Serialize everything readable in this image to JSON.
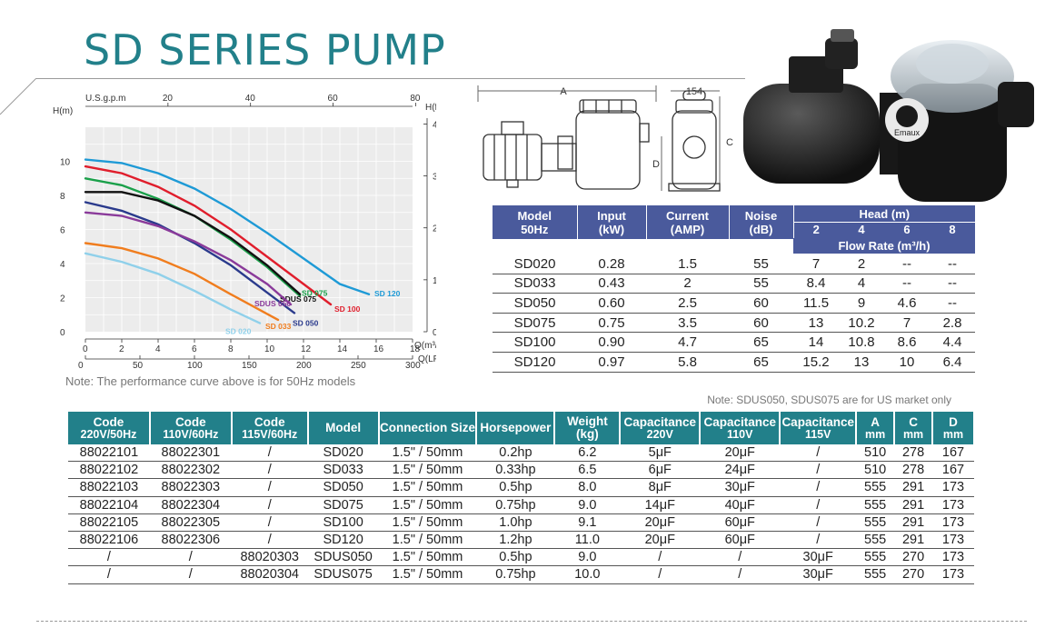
{
  "header": {
    "title": "SD SERIES PUMP"
  },
  "chart_data": {
    "type": "line",
    "title": "",
    "xlabel": "Q(m³/h)",
    "ylabel": "H(m)",
    "x_ticks": [
      "0",
      "2",
      "4",
      "6",
      "8",
      "10",
      "12",
      "14",
      "16",
      "18"
    ],
    "y_ticks": [
      "0",
      "2",
      "4",
      "6",
      "8",
      "10"
    ],
    "x_unit_label": "Q(m³/h)",
    "y_unit_label": "H(m)",
    "top_axis": {
      "label": "U.S.g.p.m",
      "ticks": [
        "20",
        "40",
        "60",
        "80"
      ]
    },
    "bottom_axis2": {
      "label": "Q(LPM)",
      "ticks": [
        "0",
        "50",
        "100",
        "150",
        "200",
        "250",
        "300"
      ]
    },
    "right_axis": {
      "label": "H(ft)",
      "ticks": [
        "0",
        "10",
        "20",
        "30",
        "40"
      ]
    },
    "xlim": [
      0,
      18
    ],
    "ylim": [
      0,
      12
    ],
    "series": [
      {
        "name": "SD 120",
        "color": "#1e9ad6",
        "x": [
          0,
          2,
          4,
          6,
          8,
          10,
          12,
          14,
          15.6
        ],
        "y": [
          10.1,
          9.9,
          9.3,
          8.4,
          7.2,
          5.8,
          4.3,
          2.8,
          2.2
        ]
      },
      {
        "name": "SD 100",
        "color": "#e01e2c",
        "x": [
          0,
          2,
          4,
          6,
          8,
          10,
          12,
          13.5
        ],
        "y": [
          9.7,
          9.3,
          8.5,
          7.4,
          6.0,
          4.4,
          2.8,
          1.6
        ]
      },
      {
        "name": "SD 075",
        "color": "#1aa04a",
        "x": [
          0,
          2,
          4,
          6,
          8,
          10,
          11.8
        ],
        "y": [
          9.0,
          8.6,
          7.8,
          6.8,
          5.4,
          3.8,
          2.1
        ]
      },
      {
        "name": "SDUS 075",
        "color": "#111111",
        "x": [
          0,
          2,
          4,
          6,
          8,
          10,
          11.8
        ],
        "y": [
          8.2,
          8.2,
          7.7,
          6.8,
          5.5,
          3.9,
          2.2
        ]
      },
      {
        "name": "SD 050",
        "color": "#2a3a8c",
        "x": [
          0,
          2,
          4,
          6,
          8,
          10,
          11.5
        ],
        "y": [
          7.6,
          7.1,
          6.3,
          5.2,
          3.9,
          2.3,
          1.1
        ]
      },
      {
        "name": "SDUS 050",
        "color": "#8a3a9a",
        "x": [
          0,
          2,
          4,
          6,
          8,
          10,
          11.3
        ],
        "y": [
          7.0,
          6.8,
          6.2,
          5.3,
          4.2,
          2.8,
          1.6
        ]
      },
      {
        "name": "SD 033",
        "color": "#f07d1e",
        "x": [
          0,
          2,
          4,
          6,
          8,
          10.6
        ],
        "y": [
          5.2,
          4.9,
          4.3,
          3.4,
          2.2,
          0.7
        ]
      },
      {
        "name": "SD 020",
        "color": "#8fd0ea",
        "x": [
          0,
          2,
          4,
          6,
          8,
          9.6
        ],
        "y": [
          4.6,
          4.1,
          3.4,
          2.4,
          1.3,
          0.5
        ]
      }
    ]
  },
  "notes": {
    "curve": "Note: The performance curve above is for 50Hz models",
    "us_market": "Note: SDUS050, SDUS075 are for US market only"
  },
  "diagram": {
    "label_a": "A",
    "label_b": "154",
    "label_c": "C",
    "label_d": "D"
  },
  "photo": {
    "brand": "Emaux"
  },
  "spec_table": {
    "headers": {
      "model": [
        "Model",
        "50Hz"
      ],
      "input": [
        "Input",
        "(kW)"
      ],
      "current": [
        "Current",
        "(AMP)"
      ],
      "noise": [
        "Noise",
        "(dB)"
      ],
      "head": "Head (m)",
      "head_values": [
        "2",
        "4",
        "6",
        "8"
      ],
      "flow": "Flow Rate (m³/h)"
    },
    "rows": [
      [
        "SD020",
        "0.28",
        "1.5",
        "55",
        "7",
        "2",
        "--",
        "--"
      ],
      [
        "SD033",
        "0.43",
        "2",
        "55",
        "8.4",
        "4",
        "--",
        "--"
      ],
      [
        "SD050",
        "0.60",
        "2.5",
        "60",
        "11.5",
        "9",
        "4.6",
        "--"
      ],
      [
        "SD075",
        "0.75",
        "3.5",
        "60",
        "13",
        "10.2",
        "7",
        "2.8"
      ],
      [
        "SD100",
        "0.90",
        "4.7",
        "65",
        "14",
        "10.8",
        "8.6",
        "4.4"
      ],
      [
        "SD120",
        "0.97",
        "5.8",
        "65",
        "15.2",
        "13",
        "10",
        "6.4"
      ]
    ]
  },
  "main_table": {
    "headers": [
      [
        "Code",
        "220V/50Hz"
      ],
      [
        "Code",
        "110V/60Hz"
      ],
      [
        "Code",
        "115V/60Hz"
      ],
      [
        "Model",
        ""
      ],
      [
        "Connection Size",
        ""
      ],
      [
        "Horsepower",
        ""
      ],
      [
        "Weight (kg)",
        ""
      ],
      [
        "Capacitance",
        "220V"
      ],
      [
        "Capacitance",
        "110V"
      ],
      [
        "Capacitance",
        "115V"
      ],
      [
        "A",
        "mm"
      ],
      [
        "C",
        "mm"
      ],
      [
        "D",
        "mm"
      ]
    ],
    "rows": [
      [
        "88022101",
        "88022301",
        "/",
        "SD020",
        "1.5\" / 50mm",
        "0.2hp",
        "6.2",
        "5μF",
        "20μF",
        "/",
        "510",
        "278",
        "167"
      ],
      [
        "88022102",
        "88022302",
        "/",
        "SD033",
        "1.5\" / 50mm",
        "0.33hp",
        "6.5",
        "6μF",
        "24μF",
        "/",
        "510",
        "278",
        "167"
      ],
      [
        "88022103",
        "88022303",
        "/",
        "SD050",
        "1.5\" / 50mm",
        "0.5hp",
        "8.0",
        "8μF",
        "30μF",
        "/",
        "555",
        "291",
        "173"
      ],
      [
        "88022104",
        "88022304",
        "/",
        "SD075",
        "1.5\" / 50mm",
        "0.75hp",
        "9.0",
        "14μF",
        "40μF",
        "/",
        "555",
        "291",
        "173"
      ],
      [
        "88022105",
        "88022305",
        "/",
        "SD100",
        "1.5\" / 50mm",
        "1.0hp",
        "9.1",
        "20μF",
        "60μF",
        "/",
        "555",
        "291",
        "173"
      ],
      [
        "88022106",
        "88022306",
        "/",
        "SD120",
        "1.5\" / 50mm",
        "1.2hp",
        "11.0",
        "20μF",
        "60μF",
        "/",
        "555",
        "291",
        "173"
      ],
      [
        "/",
        "/",
        "88020303",
        "SDUS050",
        "1.5\" / 50mm",
        "0.5hp",
        "9.0",
        "/",
        "/",
        "30μF",
        "555",
        "270",
        "173"
      ],
      [
        "/",
        "/",
        "88020304",
        "SDUS075",
        "1.5\" / 50mm",
        "0.75hp",
        "10.0",
        "/",
        "/",
        "30μF",
        "555",
        "270",
        "173"
      ]
    ]
  }
}
